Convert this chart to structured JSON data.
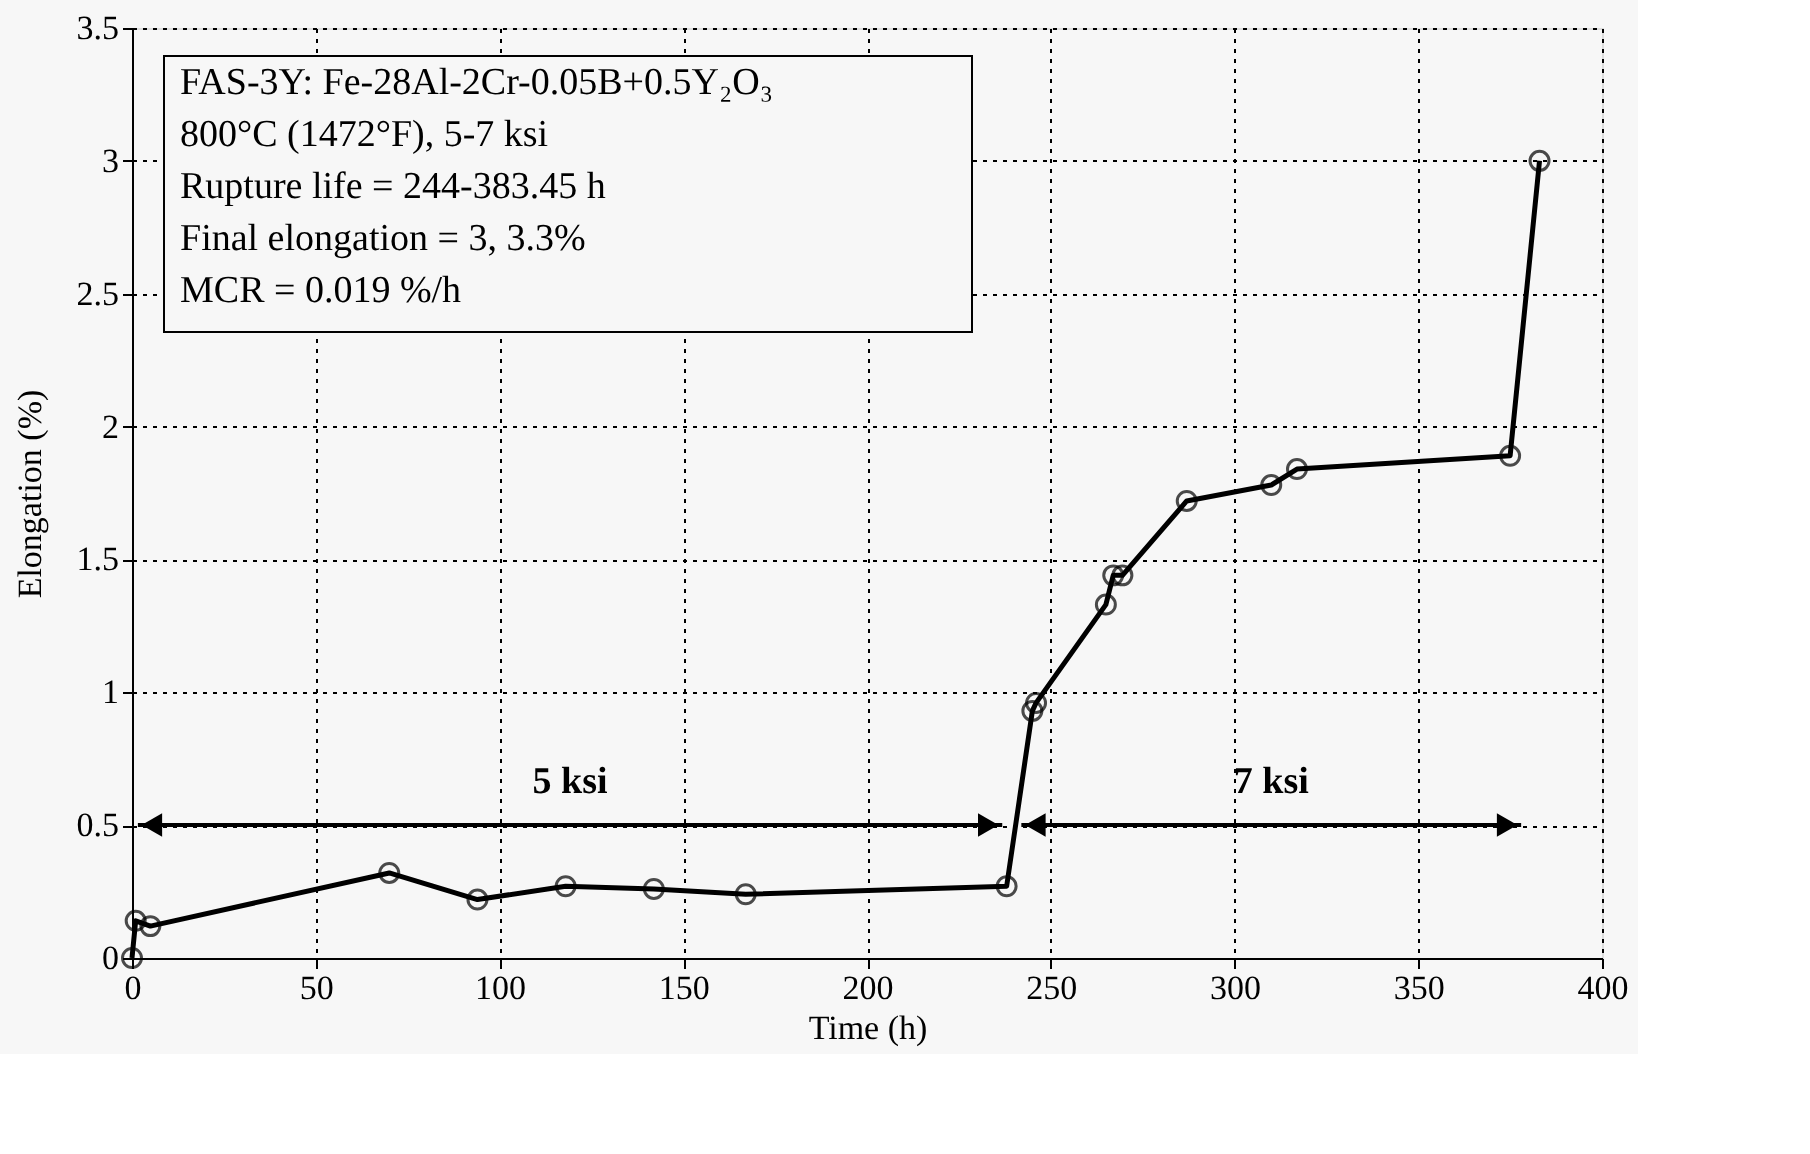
{
  "chart_data": {
    "type": "line",
    "xlabel": "Time (h)",
    "ylabel": "Elongation (%)",
    "x": [
      0,
      1,
      5,
      70,
      94,
      118,
      142,
      167,
      238,
      245,
      246,
      265,
      267,
      269.5,
      287,
      310,
      317,
      375,
      383
    ],
    "series": [
      {
        "color": "#000000",
        "values": [
          0,
          0.14,
          0.12,
          0.32,
          0.22,
          0.27,
          0.26,
          0.24,
          0.27,
          0.93,
          0.96,
          1.33,
          1.44,
          1.44,
          1.72,
          1.78,
          1.84,
          1.89,
          3.0
        ]
      }
    ],
    "xlim": [
      0,
      400
    ],
    "ylim": [
      0,
      3.5
    ],
    "xticks": [
      0,
      50,
      100,
      150,
      200,
      250,
      300,
      350,
      400
    ],
    "yticks": [
      0,
      0.5,
      1,
      1.5,
      2,
      2.5,
      3,
      3.5
    ],
    "grid": true,
    "marker": "circle",
    "line_style": "solid",
    "annotations": [
      "FAS-3Y: Fe-28Al-2Cr-0.05B+0.5Y₂O₃",
      "800°C (1472°F), 5-7 ksi",
      "Rupture life = 244-383.45 h",
      "Final elongation = 3, 3.3%",
      "MCR = 0.019 %/h",
      "5 ksi",
      "7 ksi"
    ]
  }
}
